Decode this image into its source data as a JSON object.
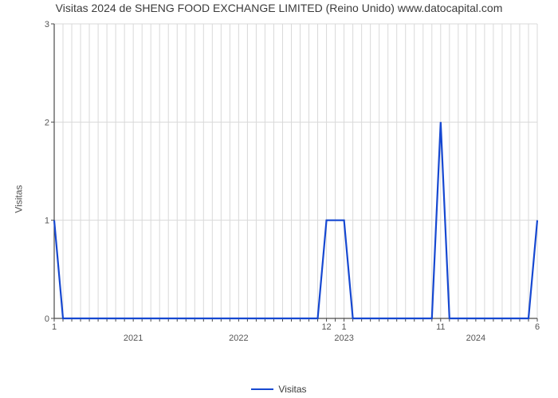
{
  "title": "Visitas 2024 de SHENG FOOD EXCHANGE LIMITED (Reino Unido) www.datocapital.com",
  "yaxis_label": "Visitas",
  "chart": {
    "type": "line",
    "line_color": "#1648d1",
    "line_width": 2.2,
    "background_color": "#ffffff",
    "grid_color": "#d9d9d9",
    "axis_color": "#4a4a4a",
    "tick_color": "#4a4a4a",
    "ylim": [
      0,
      3
    ],
    "y_ticks": [
      0,
      1,
      2,
      3
    ],
    "x_total_months": 56,
    "x_major_ticks": [
      {
        "pos": 9,
        "label": "2021"
      },
      {
        "pos": 21,
        "label": "2022"
      },
      {
        "pos": 33,
        "label": "2023"
      },
      {
        "pos": 48,
        "label": "2024"
      }
    ],
    "x_minor_ticks": [
      {
        "pos": 0,
        "label": "1"
      },
      {
        "pos": 31,
        "label": "12"
      },
      {
        "pos": 33,
        "label": "1"
      },
      {
        "pos": 44,
        "label": "11"
      },
      {
        "pos": 55,
        "label": "6"
      }
    ],
    "x_all_month_positions": [
      0,
      1,
      2,
      3,
      4,
      5,
      6,
      7,
      8,
      9,
      10,
      11,
      12,
      13,
      14,
      15,
      16,
      17,
      18,
      19,
      20,
      21,
      22,
      23,
      24,
      25,
      26,
      27,
      28,
      29,
      30,
      31,
      32,
      33,
      34,
      35,
      36,
      37,
      38,
      39,
      40,
      41,
      42,
      43,
      44,
      45,
      46,
      47,
      48,
      49,
      50,
      51,
      52,
      53,
      54,
      55
    ],
    "data": [
      {
        "x": 0,
        "y": 1
      },
      {
        "x": 1,
        "y": 0
      },
      {
        "x": 30,
        "y": 0
      },
      {
        "x": 31,
        "y": 1
      },
      {
        "x": 33,
        "y": 1
      },
      {
        "x": 34,
        "y": 0
      },
      {
        "x": 43,
        "y": 0
      },
      {
        "x": 44,
        "y": 2
      },
      {
        "x": 45,
        "y": 0
      },
      {
        "x": 54,
        "y": 0
      },
      {
        "x": 55,
        "y": 1
      }
    ]
  },
  "legend": {
    "label": "Visitas"
  },
  "fontsize_title": 14,
  "fontsize_tick": 11,
  "fontsize_legend": 12
}
